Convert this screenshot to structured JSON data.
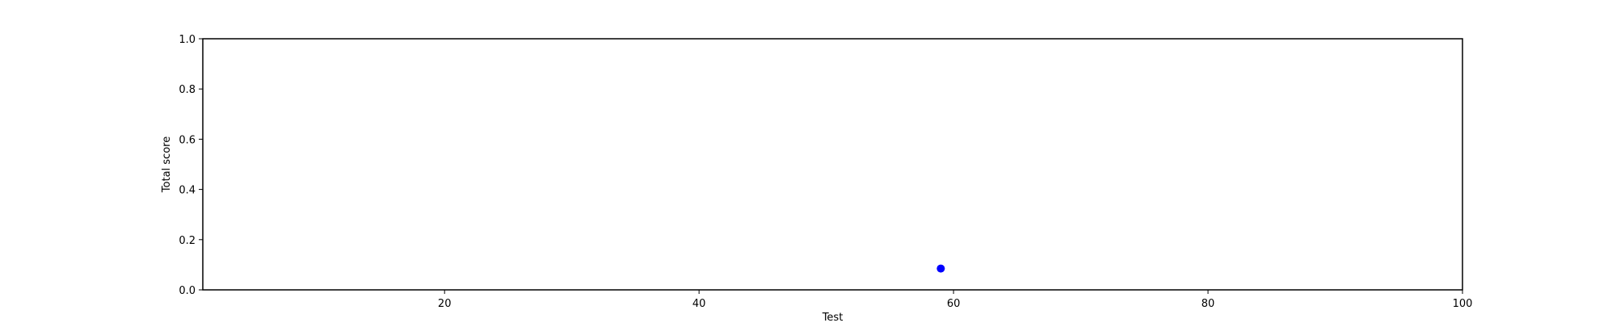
{
  "chart_data": {
    "type": "scatter",
    "title": "",
    "xlabel": "Test",
    "ylabel": "Total score",
    "xlim": [
      1,
      100
    ],
    "ylim": [
      0,
      1.0
    ],
    "x_ticks": [
      20,
      40,
      60,
      80,
      100
    ],
    "y_ticks": [
      0.0,
      0.2,
      0.4,
      0.6,
      0.8,
      1.0
    ],
    "x_tick_labels": [
      "20",
      "40",
      "60",
      "80",
      "100"
    ],
    "y_tick_labels": [
      "0.0",
      "0.2",
      "0.4",
      "0.6",
      "0.8",
      "1.0"
    ],
    "grid": false,
    "legend": "none",
    "marker_color": "#0000ff",
    "series": [
      {
        "points": [
          {
            "x": 59,
            "y": 0.085
          }
        ]
      }
    ]
  }
}
